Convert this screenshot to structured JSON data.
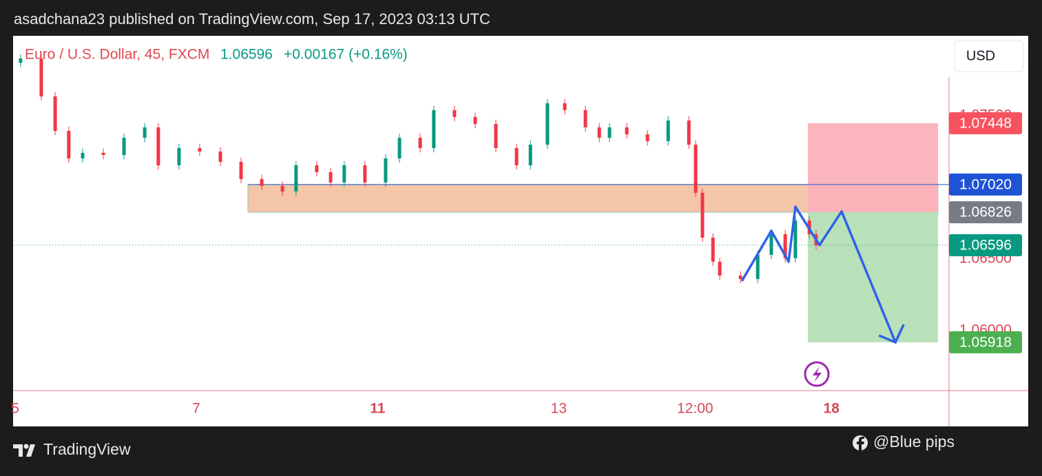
{
  "header": {
    "byline": "asadchana23 published on TradingView.com, Sep 17, 2023 03:13 UTC"
  },
  "footer": {
    "brand": "TradingView",
    "credit": "@Blue pips"
  },
  "chart_data": {
    "type": "candlestick",
    "symbol": "Euro / U.S. Dollar, 45, FXCM",
    "last": {
      "value": 1.06596,
      "label": "1.06596"
    },
    "change": "+0.00167 (+0.16%)",
    "currency": "USD",
    "up_color": "#089981",
    "down_color": "#f23645",
    "xlim": [
      0,
      330
    ],
    "ylim": [
      1.05581,
      1.08058
    ],
    "xticks": [
      {
        "value": 0.5,
        "label": "5"
      },
      {
        "value": 64.4,
        "label": "7"
      },
      {
        "value": 128.4,
        "label": "11",
        "bold": true
      },
      {
        "value": 192.3,
        "label": "13"
      },
      {
        "value": 240.4,
        "label": "12:00"
      },
      {
        "value": 288.5,
        "label": "18",
        "bold": true
      }
    ],
    "yticks": [
      {
        "value": 1.06,
        "label": "1.06000"
      },
      {
        "value": 1.065,
        "label": "1.06500"
      },
      {
        "value": 1.075,
        "label": "1.07500"
      }
    ],
    "x": [
      2.4,
      9.7,
      14.6,
      19.4,
      24.3,
      31.6,
      38.9,
      46.2,
      51,
      58.3,
      65.6,
      72.9,
      80.2,
      87.5,
      94.8,
      99.6,
      106.9,
      111.8,
      116.6,
      123.9,
      131.2,
      136.1,
      143.4,
      148.2,
      155.5,
      162.8,
      170.1,
      177.4,
      182.3,
      188.3,
      194.4,
      201.7,
      206.6,
      210.2,
      216.3,
      223.6,
      230.9,
      238.2,
      240.6,
      243,
      246.7,
      249.1,
      256.4,
      262.5,
      267.3,
      272.2,
      275.8,
      280.7,
      283.1
    ],
    "open": [
      1.0787,
      1.079,
      1.07635,
      1.07394,
      1.07202,
      1.07241,
      1.07226,
      1.07346,
      1.07419,
      1.07154,
      1.07274,
      1.0725,
      1.07178,
      1.07058,
      1.0701,
      1.06971,
      1.07154,
      1.07106,
      1.07034,
      1.07154,
      1.07034,
      1.07202,
      1.07346,
      1.07274,
      1.07539,
      1.07491,
      1.07443,
      1.07274,
      1.07154,
      1.07298,
      1.07587,
      1.07539,
      1.07419,
      1.07346,
      1.07419,
      1.0737,
      1.07322,
      1.07467,
      1.07298,
      1.06962,
      1.06649,
      1.06481,
      1.06384,
      1.0636,
      1.06529,
      1.06673,
      1.06505,
      1.06769,
      1.06673
    ],
    "high": [
      1.0793,
      1.0793,
      1.07665,
      1.07424,
      1.07271,
      1.07271,
      1.07376,
      1.07449,
      1.07449,
      1.07304,
      1.07304,
      1.0728,
      1.07208,
      1.07088,
      1.0704,
      1.07184,
      1.07184,
      1.07136,
      1.07184,
      1.07184,
      1.07232,
      1.07376,
      1.07376,
      1.07569,
      1.07569,
      1.07521,
      1.07473,
      1.07304,
      1.07328,
      1.07617,
      1.07617,
      1.07569,
      1.07449,
      1.07449,
      1.07449,
      1.074,
      1.07497,
      1.07497,
      1.07328,
      1.06992,
      1.06679,
      1.06511,
      1.06414,
      1.06559,
      1.06703,
      1.06703,
      1.06799,
      1.06799,
      1.06703
    ],
    "low": [
      1.0784,
      1.07605,
      1.07364,
      1.07172,
      1.07172,
      1.07196,
      1.07196,
      1.07316,
      1.07124,
      1.07124,
      1.0722,
      1.07148,
      1.07028,
      1.0698,
      1.06941,
      1.06941,
      1.07076,
      1.07004,
      1.07004,
      1.07004,
      1.07004,
      1.07172,
      1.07244,
      1.07244,
      1.07461,
      1.07413,
      1.07244,
      1.07124,
      1.07124,
      1.07268,
      1.07509,
      1.07389,
      1.07316,
      1.07316,
      1.0734,
      1.07292,
      1.07292,
      1.07268,
      1.06932,
      1.06619,
      1.06451,
      1.06354,
      1.0633,
      1.0633,
      1.06499,
      1.06475,
      1.06475,
      1.06643,
      1.06566
    ],
    "close": [
      1.079,
      1.07635,
      1.07394,
      1.07202,
      1.07241,
      1.07226,
      1.07346,
      1.07419,
      1.07154,
      1.07274,
      1.0725,
      1.07178,
      1.07058,
      1.0701,
      1.06971,
      1.07154,
      1.07106,
      1.07034,
      1.07154,
      1.07034,
      1.07202,
      1.07346,
      1.07274,
      1.07539,
      1.07491,
      1.07443,
      1.07274,
      1.07154,
      1.07298,
      1.07587,
      1.07539,
      1.07419,
      1.07346,
      1.07419,
      1.0737,
      1.07322,
      1.07467,
      1.07298,
      1.06962,
      1.06649,
      1.06481,
      1.06384,
      1.0636,
      1.06529,
      1.06673,
      1.06505,
      1.06769,
      1.06673,
      1.06596
    ],
    "zone": {
      "x": [
        82.6,
        326.1
      ],
      "top": 1.0702,
      "bottom": 1.06826,
      "color": "#f5c5a8"
    },
    "position": {
      "x": [
        280.2,
        326.1
      ],
      "entry": 1.06826,
      "stop": 1.07448,
      "target": 1.05918,
      "stop_color": "#fbb1b8",
      "target_color": "#b4dfb6"
    },
    "projection": {
      "color": "#2f62e8",
      "x": [
        256.9,
        267.3,
        273.4,
        275.8,
        284.3,
        292.1,
        311.1
      ],
      "y": [
        1.06346,
        1.06697,
        1.06481,
        1.06865,
        1.06596,
        1.06832,
        1.05918
      ]
    },
    "price_labels": [
      {
        "value": 1.07448,
        "label": "1.07448",
        "color": "#f7525f"
      },
      {
        "value": 1.0702,
        "label": "1.07020",
        "color": "#1e53d6"
      },
      {
        "value": 1.06826,
        "label": "1.06826",
        "color": "#787b86"
      },
      {
        "value": 1.06596,
        "label": "1.06596",
        "color": "#089981"
      },
      {
        "value": 1.05918,
        "label": "1.05918",
        "color": "#4caf50"
      }
    ]
  }
}
